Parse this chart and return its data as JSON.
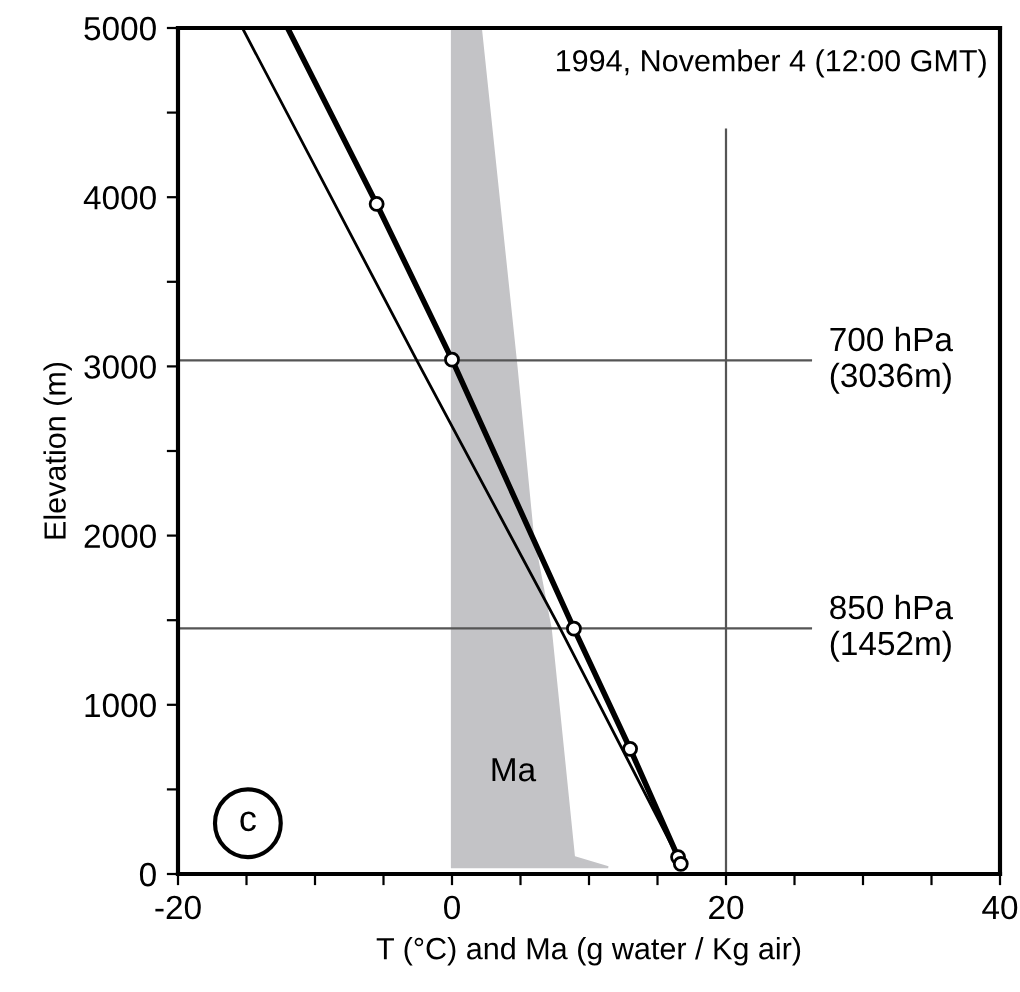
{
  "chart_data": {
    "type": "line",
    "xlabel": "T (°C) and Ma (g water / Kg air)",
    "ylabel": "Elevation (m)",
    "xlim": [
      -20,
      40
    ],
    "ylim": [
      0,
      5000
    ],
    "xticks": [
      -20,
      {
        "value": -15,
        "label": null
      },
      {
        "value": -10,
        "label": null
      },
      {
        "value": -5,
        "label": null
      },
      0,
      {
        "value": 5,
        "label": null
      },
      {
        "value": 10,
        "label": null
      },
      {
        "value": 15,
        "label": null
      },
      20,
      {
        "value": 25,
        "label": null
      },
      {
        "value": 30,
        "label": null
      },
      {
        "value": 35,
        "label": null
      },
      40
    ],
    "yticks": [
      0,
      {
        "value": 500,
        "label": null
      },
      1000,
      {
        "value": 1500,
        "label": null
      },
      2000,
      {
        "value": 2500,
        "label": null
      },
      3000,
      {
        "value": 3500,
        "label": null
      },
      4000,
      {
        "value": 4500,
        "label": null
      },
      5000
    ],
    "grid": false,
    "series": [
      {
        "name": "Ma",
        "type": "area",
        "color": "#c3c3c6",
        "x": [
          0,
          2.1,
          4.7,
          5.9,
          7.2,
          8.9,
          11.4,
          0
        ],
        "values": [
          5000,
          5000,
          3000,
          2000,
          1450,
          100,
          40,
          40
        ]
      },
      {
        "color": "#000000",
        "x": [
          -15.3,
          -2.6,
          7.9,
          16.8
        ],
        "values": [
          5000,
          3040,
          1450,
          50
        ],
        "marker": "none"
      },
      {
        "color": "#000000",
        "x": [
          -12,
          -5.5,
          0,
          8.9,
          13,
          16.5,
          16.7
        ],
        "values": [
          5000,
          3960,
          3040,
          1450,
          740,
          100,
          60
        ],
        "marker": "none"
      },
      {
        "type": "scatter",
        "color": "#000000",
        "x": [
          -5.5,
          0,
          8.9,
          13,
          16.5,
          16.7
        ],
        "values": [
          3960,
          3040,
          1450,
          740,
          100,
          60
        ],
        "marker": "circle"
      }
    ],
    "ref_lines": [
      {
        "axis": "y",
        "value": 3036,
        "label": "700 hPa\n(3036m)",
        "color": "#555555"
      },
      {
        "axis": "y",
        "value": 1452,
        "label": "850 hPa\n(1452m)",
        "color": "#555555"
      },
      {
        "axis": "x",
        "value": 20,
        "color": "#555555"
      }
    ],
    "annotations": [
      "1994, November 4 (12:00 GMT)",
      "c"
    ]
  }
}
